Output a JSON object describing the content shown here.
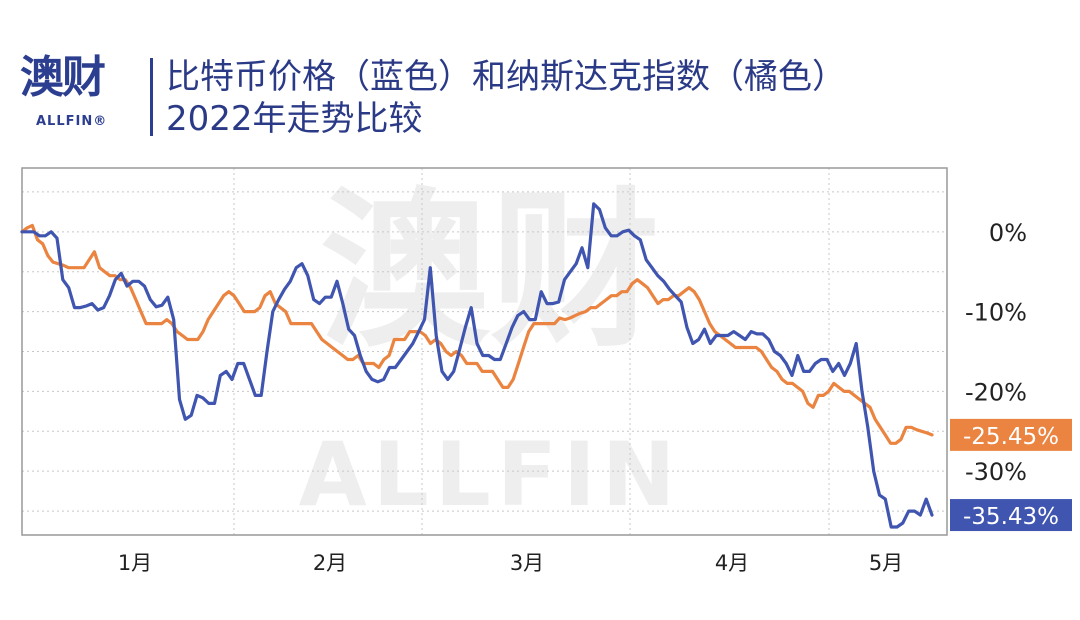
{
  "header": {
    "logo_text": "澳财",
    "logo_subtext": "ALLFIN®",
    "title_line1": "比特币价格（蓝色）和纳斯达克指数（橘色）",
    "title_line2": "2022年走势比较"
  },
  "watermark": {
    "text_cn": "澳财",
    "text_en": "ALLFIN"
  },
  "chart_data": {
    "type": "line",
    "x_ticks": [
      "1月",
      "2月",
      "3月",
      "4月",
      "5月"
    ],
    "y_ticks": [
      "0%",
      "-10%",
      "-20%",
      "-30%"
    ],
    "ylim": [
      -38,
      8
    ],
    "grid": true,
    "series": [
      {
        "color": "#3f55b0",
        "end_label": "-35.43%",
        "values": [
          0,
          0,
          0,
          -0.5,
          -0.5,
          0,
          -0.8,
          -6,
          -7,
          -9.5,
          -9.5,
          -9.3,
          -9,
          -9.8,
          -9.5,
          -8,
          -6,
          -5.2,
          -6.8,
          -6.2,
          -6.2,
          -6.8,
          -8.5,
          -9.4,
          -9.2,
          -8.2,
          -11,
          -21,
          -23.5,
          -23,
          -20.5,
          -20.8,
          -21.5,
          -21.5,
          -18,
          -17.5,
          -18.5,
          -16.5,
          -16.5,
          -18.5,
          -20.5,
          -20.5,
          -15,
          -10,
          -8.5,
          -7.2,
          -6.2,
          -4.5,
          -4,
          -5.5,
          -8.5,
          -9,
          -8.2,
          -8.2,
          -6.2,
          -9,
          -12.2,
          -13,
          -15.5,
          -17.5,
          -18.5,
          -18.8,
          -18.5,
          -17,
          -17,
          -16,
          -15,
          -14,
          -12.5,
          -11,
          -4.5,
          -13,
          -17.5,
          -18.5,
          -17.5,
          -14.8,
          -12,
          -9.5,
          -14,
          -15.5,
          -15.5,
          -16,
          -16,
          -14,
          -12,
          -10.5,
          -10,
          -11,
          -11,
          -7.5,
          -9,
          -9,
          -8.8,
          -6,
          -5,
          -4,
          -2,
          -4.5,
          3.5,
          2.8,
          0.5,
          -0.5,
          -0.5,
          0,
          0.2,
          -0.5,
          -1,
          -3.5,
          -4.5,
          -5.5,
          -6.2,
          -7.2,
          -8,
          -8.8,
          -12,
          -14,
          -13.5,
          -12.2,
          -14,
          -13,
          -13,
          -13,
          -12.5,
          -13,
          -13.5,
          -12.5,
          -12.8,
          -12.8,
          -13.5,
          -15,
          -15.5,
          -16.5,
          -18,
          -15.5,
          -17.5,
          -17.5,
          -16.5,
          -16,
          -16,
          -17.5,
          -16.5,
          -18,
          -16.5,
          -14,
          -20,
          -24.5,
          -30,
          -33,
          -33.5,
          -37,
          -37,
          -36.5,
          -35,
          -35,
          -35.5,
          -33.5,
          -35.5
        ]
      },
      {
        "color": "#ea8440",
        "end_label": "-25.45%",
        "values": [
          0,
          0.5,
          0.8,
          -1,
          -1.5,
          -3,
          -3.8,
          -4,
          -4.2,
          -4.5,
          -4.5,
          -4.5,
          -4.5,
          -3.5,
          -2.5,
          -4.5,
          -5,
          -5.5,
          -5.5,
          -6,
          -6,
          -7,
          -8.5,
          -10,
          -11.5,
          -11.5,
          -11.5,
          -11.5,
          -11,
          -11.5,
          -12.5,
          -13,
          -13.5,
          -13.5,
          -13.5,
          -12.5,
          -11,
          -10,
          -9,
          -8,
          -7.5,
          -8,
          -9,
          -10,
          -10,
          -10,
          -9.5,
          -8,
          -7.5,
          -9,
          -9.5,
          -10,
          -11.5,
          -11.5,
          -11.5,
          -11.5,
          -11.5,
          -12.5,
          -13.5,
          -14,
          -14.5,
          -15,
          -15.5,
          -16,
          -16,
          -15.5,
          -16.5,
          -16.5,
          -16.5,
          -17,
          -16,
          -15.5,
          -13.5,
          -13.5,
          -13.5,
          -12.5,
          -12.5,
          -12.5,
          -13,
          -14,
          -13.5,
          -14,
          -15,
          -15.5,
          -15,
          -15.5,
          -16.5,
          -16.5,
          -16.5,
          -17.5,
          -17.5,
          -17.5,
          -18.5,
          -19.5,
          -19.5,
          -18.5,
          -16.5,
          -14.5,
          -12.5,
          -11.5,
          -11.5,
          -11.5,
          -11.5,
          -11.5,
          -10.8,
          -11,
          -10.8,
          -10.5,
          -10.2,
          -10,
          -9.5,
          -9.5,
          -9,
          -8.5,
          -8,
          -8,
          -7.5,
          -7.5,
          -6.5,
          -6,
          -6.5,
          -7,
          -8,
          -9,
          -8.5,
          -8.5,
          -8,
          -8,
          -7.5,
          -7,
          -7.5,
          -8.5,
          -10,
          -11.5,
          -12.5,
          -13,
          -13.5,
          -14,
          -14.5,
          -14.5,
          -14.5,
          -14.5,
          -14.5,
          -15,
          -16,
          -17,
          -17.5,
          -18.5,
          -19,
          -19,
          -19.5,
          -20,
          -21.5,
          -22,
          -20.5,
          -20.5,
          -20,
          -19,
          -19.5,
          -20,
          -20,
          -20.5,
          -21,
          -21.5,
          -22,
          -23.5,
          -24.5,
          -25.5,
          -26.5,
          -26.5,
          -26,
          -24.5,
          -24.5,
          -24.8,
          -25,
          -25.2,
          -25.45
        ]
      }
    ]
  }
}
